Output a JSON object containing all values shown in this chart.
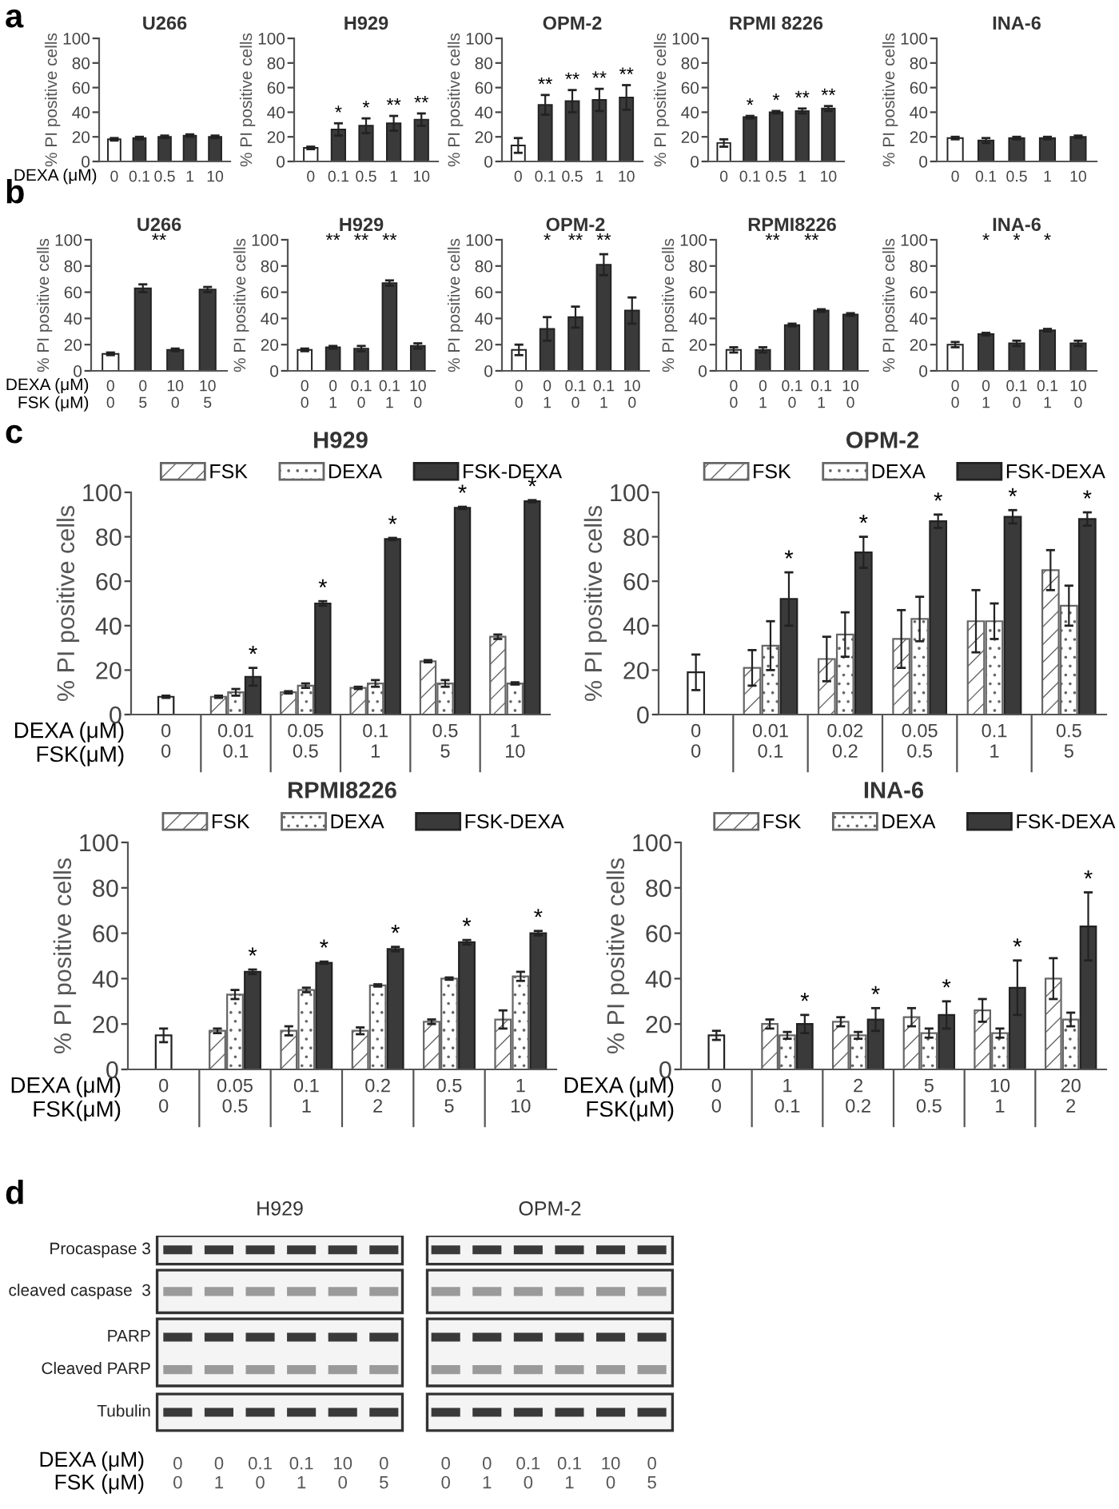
{
  "chart_data": [
    {
      "type": "bar",
      "title": "U266",
      "ylabel": "% PI positive cells",
      "xlabel": "DEXA (μM)",
      "categories": [
        "0",
        "0.1",
        "0.5",
        "1",
        "10"
      ],
      "values": [
        18,
        19,
        20,
        21,
        20
      ],
      "errors": [
        1,
        1,
        1,
        1,
        1
      ],
      "colors": [
        "#ffffff",
        "#3a3a3a",
        "#3a3a3a",
        "#3a3a3a",
        "#3a3a3a"
      ],
      "ylim": [
        0,
        100
      ],
      "yticks": [
        0,
        20,
        40,
        60,
        80,
        100
      ],
      "annotations": [
        "a"
      ]
    },
    {
      "type": "bar",
      "title": "H929",
      "ylabel": "% PI positive cells",
      "categories": [
        "0",
        "0.1",
        "0.5",
        "1",
        "10"
      ],
      "values": [
        11,
        26,
        29,
        31,
        34
      ],
      "errors": [
        1,
        5,
        6,
        6,
        5
      ],
      "colors": [
        "#ffffff",
        "#3a3a3a",
        "#3a3a3a",
        "#3a3a3a",
        "#3a3a3a"
      ],
      "ylim": [
        0,
        100
      ],
      "yticks": [
        0,
        20,
        40,
        60,
        80,
        100
      ],
      "annotations": [
        {
          "text": "*",
          "x": "0.1",
          "y": 26
        },
        {
          "text": "*",
          "x": "0.5",
          "y": 29
        },
        {
          "text": "**",
          "x": "1",
          "y": 31
        },
        {
          "text": "**",
          "x": "10",
          "y": 34
        }
      ]
    },
    {
      "type": "bar",
      "title": "OPM-2",
      "ylabel": "% PI positive cells",
      "categories": [
        "0",
        "0.1",
        "0.5",
        "1",
        "10"
      ],
      "values": [
        13,
        46,
        49,
        50,
        52
      ],
      "errors": [
        6,
        8,
        9,
        9,
        10
      ],
      "colors": [
        "#ffffff",
        "#3a3a3a",
        "#3a3a3a",
        "#3a3a3a",
        "#3a3a3a"
      ],
      "ylim": [
        0,
        100
      ],
      "yticks": [
        0,
        20,
        40,
        60,
        80,
        100
      ],
      "annotations": [
        {
          "text": "**",
          "x": "0.1",
          "y": 46
        },
        {
          "text": "**",
          "x": "0.5",
          "y": 49
        },
        {
          "text": "**",
          "x": "1",
          "y": 50
        },
        {
          "text": "**",
          "x": "10",
          "y": 52
        }
      ]
    },
    {
      "type": "bar",
      "title": "RPMI 8226",
      "ylabel": "% PI positive cells",
      "categories": [
        "0",
        "0.1",
        "0.5",
        "1",
        "10"
      ],
      "values": [
        15,
        36,
        40,
        41,
        43
      ],
      "errors": [
        3,
        1,
        1,
        2,
        2
      ],
      "colors": [
        "#ffffff",
        "#3a3a3a",
        "#3a3a3a",
        "#3a3a3a",
        "#3a3a3a"
      ],
      "ylim": [
        0,
        100
      ],
      "yticks": [
        0,
        20,
        40,
        60,
        80,
        100
      ],
      "annotations": [
        {
          "text": "*",
          "x": "0.1",
          "y": 36
        },
        {
          "text": "*",
          "x": "0.5",
          "y": 40
        },
        {
          "text": "**",
          "x": "1",
          "y": 41
        },
        {
          "text": "**",
          "x": "10",
          "y": 43
        }
      ]
    },
    {
      "type": "bar",
      "title": "INA-6",
      "ylabel": "% PI positive cells",
      "categories": [
        "0",
        "0.1",
        "0.5",
        "1",
        "10"
      ],
      "values": [
        19,
        17,
        19,
        19,
        20
      ],
      "errors": [
        1,
        2,
        1,
        1,
        1
      ],
      "colors": [
        "#ffffff",
        "#3a3a3a",
        "#3a3a3a",
        "#3a3a3a",
        "#3a3a3a"
      ],
      "ylim": [
        0,
        100
      ],
      "yticks": [
        0,
        20,
        40,
        60,
        80,
        100
      ]
    },
    {
      "type": "bar",
      "title": "U266",
      "ylabel": "% PI positive cells",
      "xlabel": "DEXA (μM)\nFSK (μM)",
      "categories": [
        "0\n0",
        "0\n5",
        "10\n0",
        "10\n5"
      ],
      "values": [
        13,
        63,
        16,
        62
      ],
      "errors": [
        1,
        3,
        1,
        2
      ],
      "colors": [
        "#ffffff",
        "#3a3a3a",
        "#3a3a3a",
        "#3a3a3a"
      ],
      "ylim": [
        0,
        100
      ],
      "yticks": [
        0,
        20,
        40,
        60,
        80,
        100
      ],
      "annotations": [
        "b",
        "**"
      ]
    },
    {
      "type": "bar",
      "title": "H929",
      "ylabel": "% PI positive cells",
      "categories": [
        "0\n0",
        "0\n1",
        "0.1\n0",
        "0.1\n1",
        "10\n0"
      ],
      "values": [
        16,
        18,
        17,
        67,
        19
      ],
      "errors": [
        1,
        1,
        2,
        2,
        2
      ],
      "colors": [
        "#ffffff",
        "#3a3a3a",
        "#3a3a3a",
        "#3a3a3a",
        "#3a3a3a"
      ],
      "ylim": [
        0,
        100
      ],
      "yticks": [
        0,
        20,
        40,
        60,
        80,
        100
      ],
      "annotations": [
        "**",
        "**",
        "**"
      ]
    },
    {
      "type": "bar",
      "title": "OPM-2",
      "ylabel": "% PI positive cells",
      "categories": [
        "0\n0",
        "0\n1",
        "0.1\n0",
        "0.1\n1",
        "10\n0"
      ],
      "values": [
        16,
        32,
        41,
        81,
        46
      ],
      "errors": [
        4,
        9,
        8,
        8,
        10
      ],
      "colors": [
        "#ffffff",
        "#3a3a3a",
        "#3a3a3a",
        "#3a3a3a",
        "#3a3a3a"
      ],
      "ylim": [
        0,
        100
      ],
      "yticks": [
        0,
        20,
        40,
        60,
        80,
        100
      ],
      "annotations": [
        "*",
        "**",
        "**"
      ]
    },
    {
      "type": "bar",
      "title": "RPMI8226",
      "ylabel": "% PI positive cells",
      "categories": [
        "0\n0",
        "0\n1",
        "0.1\n0",
        "0.1\n1",
        "10\n0"
      ],
      "values": [
        16,
        16,
        35,
        46,
        43
      ],
      "errors": [
        2,
        2,
        1,
        1,
        1
      ],
      "colors": [
        "#ffffff",
        "#3a3a3a",
        "#3a3a3a",
        "#3a3a3a",
        "#3a3a3a"
      ],
      "ylim": [
        0,
        100
      ],
      "yticks": [
        0,
        20,
        40,
        60,
        80,
        100
      ],
      "annotations": [
        "**",
        "**"
      ]
    },
    {
      "type": "bar",
      "title": "INA-6",
      "ylabel": "% PI positive cells",
      "categories": [
        "0\n0",
        "0\n1",
        "0.1\n0",
        "0.1\n1",
        "10\n0"
      ],
      "values": [
        20,
        28,
        21,
        31,
        21
      ],
      "errors": [
        2,
        1,
        2,
        1,
        2
      ],
      "colors": [
        "#ffffff",
        "#3a3a3a",
        "#3a3a3a",
        "#3a3a3a",
        "#3a3a3a"
      ],
      "ylim": [
        0,
        100
      ],
      "yticks": [
        0,
        20,
        40,
        60,
        80,
        100
      ],
      "annotations": [
        "*",
        "*",
        "*"
      ]
    },
    {
      "type": "bar",
      "title": "H929",
      "ylabel": "% PI positive cells",
      "xlabel": "DEXA (μM)\nFSK(μM)",
      "legend": "top",
      "categories": [
        "0\n0",
        "0.01\n0.1",
        "0.05\n0.5",
        "0.1\n1",
        "0.5\n5",
        "1\n10"
      ],
      "ylim": [
        0,
        100
      ],
      "yticks": [
        0,
        20,
        40,
        60,
        80,
        100
      ],
      "series": [
        {
          "color": "#ffffff",
          "values": [
            8,
            null,
            null,
            null,
            null,
            null
          ],
          "errors": [
            0.5,
            null,
            null,
            null,
            null,
            null
          ]
        },
        {
          "name": "FSK",
          "color": "#666666",
          "values": [
            null,
            8,
            10,
            12,
            24,
            35
          ],
          "errors": [
            null,
            0.5,
            0.5,
            0.5,
            0.5,
            1
          ]
        },
        {
          "name": "DEXA",
          "color": "#666666",
          "values": [
            null,
            10,
            13,
            14,
            14,
            14
          ],
          "errors": [
            null,
            1.5,
            1,
            1.5,
            1.5,
            0.5
          ]
        },
        {
          "name": "FSK-DEXA",
          "color": "#3a3a3a",
          "values": [
            null,
            17,
            50,
            79,
            93,
            96
          ],
          "errors": [
            null,
            4,
            1,
            0.5,
            0.5,
            0.5
          ]
        }
      ],
      "annotations": [
        "c",
        "*",
        "*",
        "*",
        "*",
        "*"
      ]
    },
    {
      "type": "bar",
      "title": "OPM-2",
      "ylabel": "% PI positive cells",
      "legend": "top",
      "categories": [
        "0\n0",
        "0.01\n0.1",
        "0.02\n0.2",
        "0.05\n0.5",
        "0.1\n1",
        "0.5\n5"
      ],
      "ylim": [
        0,
        100
      ],
      "yticks": [
        0,
        20,
        40,
        60,
        80,
        100
      ],
      "series": [
        {
          "color": "#ffffff",
          "values": [
            19,
            null,
            null,
            null,
            null,
            null
          ],
          "errors": [
            8,
            null,
            null,
            null,
            null,
            null
          ]
        },
        {
          "name": "FSK",
          "color": "#666666",
          "values": [
            null,
            21,
            25,
            34,
            42,
            65
          ],
          "errors": [
            null,
            8,
            10,
            13,
            14,
            9
          ]
        },
        {
          "name": "DEXA",
          "color": "#666666",
          "values": [
            null,
            31,
            36,
            43,
            42,
            49
          ],
          "errors": [
            null,
            11,
            10,
            10,
            8,
            9
          ]
        },
        {
          "name": "FSK-DEXA",
          "color": "#3a3a3a",
          "values": [
            null,
            52,
            73,
            87,
            89,
            88
          ],
          "errors": [
            null,
            12,
            7,
            3,
            3,
            3
          ]
        }
      ],
      "annotations": [
        "*",
        "*",
        "*",
        "*",
        "*"
      ]
    },
    {
      "type": "bar",
      "title": "RPMI8226",
      "ylabel": "% PI positive cells",
      "xlabel": "DEXA (μM)\nFSK(μM)",
      "legend": "top",
      "categories": [
        "0\n0",
        "0.05\n0.5",
        "0.1\n1",
        "0.2\n2",
        "0.5\n5",
        "1\n10"
      ],
      "ylim": [
        0,
        100
      ],
      "yticks": [
        0,
        20,
        40,
        60,
        80,
        100
      ],
      "series": [
        {
          "color": "#ffffff",
          "values": [
            15,
            null,
            null,
            null,
            null,
            null
          ],
          "errors": [
            3,
            null,
            null,
            null,
            null,
            null
          ]
        },
        {
          "name": "FSK",
          "color": "#666666",
          "values": [
            null,
            17,
            17,
            17,
            21,
            22
          ],
          "errors": [
            null,
            1,
            2,
            1.5,
            1,
            4
          ]
        },
        {
          "name": "DEXA",
          "color": "#666666",
          "values": [
            null,
            33,
            35,
            37,
            40,
            41
          ],
          "errors": [
            null,
            2,
            1,
            0.5,
            0.5,
            2
          ]
        },
        {
          "name": "FSK-DEXA",
          "color": "#3a3a3a",
          "values": [
            null,
            43,
            47,
            53,
            56,
            60
          ],
          "errors": [
            null,
            1,
            0.5,
            1,
            1,
            1
          ]
        }
      ],
      "annotations": [
        "*",
        "*",
        "*",
        "*",
        "*"
      ]
    },
    {
      "type": "bar",
      "title": "INA-6",
      "ylabel": "% PI positive cells",
      "xlabel": "DEXA (μM)\nFSK(μM)",
      "legend": "top",
      "categories": [
        "0\n0",
        "1\n0.1",
        "2\n0.2",
        "5\n0.5",
        "10\n1",
        "20\n2"
      ],
      "ylim": [
        0,
        100
      ],
      "yticks": [
        0,
        20,
        40,
        60,
        80,
        100
      ],
      "series": [
        {
          "color": "#ffffff",
          "values": [
            15,
            null,
            null,
            null,
            null,
            null
          ],
          "errors": [
            2,
            null,
            null,
            null,
            null,
            null
          ]
        },
        {
          "name": "FSK",
          "color": "#666666",
          "values": [
            null,
            20,
            21,
            23,
            26,
            40
          ],
          "errors": [
            null,
            2,
            2,
            4,
            5,
            9
          ]
        },
        {
          "name": "DEXA",
          "color": "#666666",
          "values": [
            null,
            15,
            15,
            16,
            16,
            22
          ],
          "errors": [
            null,
            1.5,
            1.5,
            2,
            2,
            3
          ]
        },
        {
          "name": "FSK-DEXA",
          "color": "#3a3a3a",
          "values": [
            null,
            20,
            22,
            24,
            36,
            63
          ],
          "errors": [
            null,
            4,
            5,
            6,
            12,
            15
          ]
        }
      ],
      "annotations": [
        "*",
        "*",
        "*",
        "*",
        "*"
      ]
    },
    {
      "type": "other",
      "xlabel": "DEXA (μM)\nFSK (μM)",
      "categories": [
        "0\n0",
        "0\n1",
        "0.1\n0",
        "0.1\n1",
        "10\n0",
        "0\n5",
        "0\n0",
        "0\n1",
        "0.1\n0",
        "0.1\n1",
        "10\n0",
        "0\n5"
      ],
      "y_categories": [
        "Procaspase 3",
        "cleaved caspase  3",
        "PARP",
        "Cleaved PARP",
        "Tubulin"
      ],
      "annotations": [
        "d",
        "H929",
        "OPM-2"
      ]
    }
  ]
}
